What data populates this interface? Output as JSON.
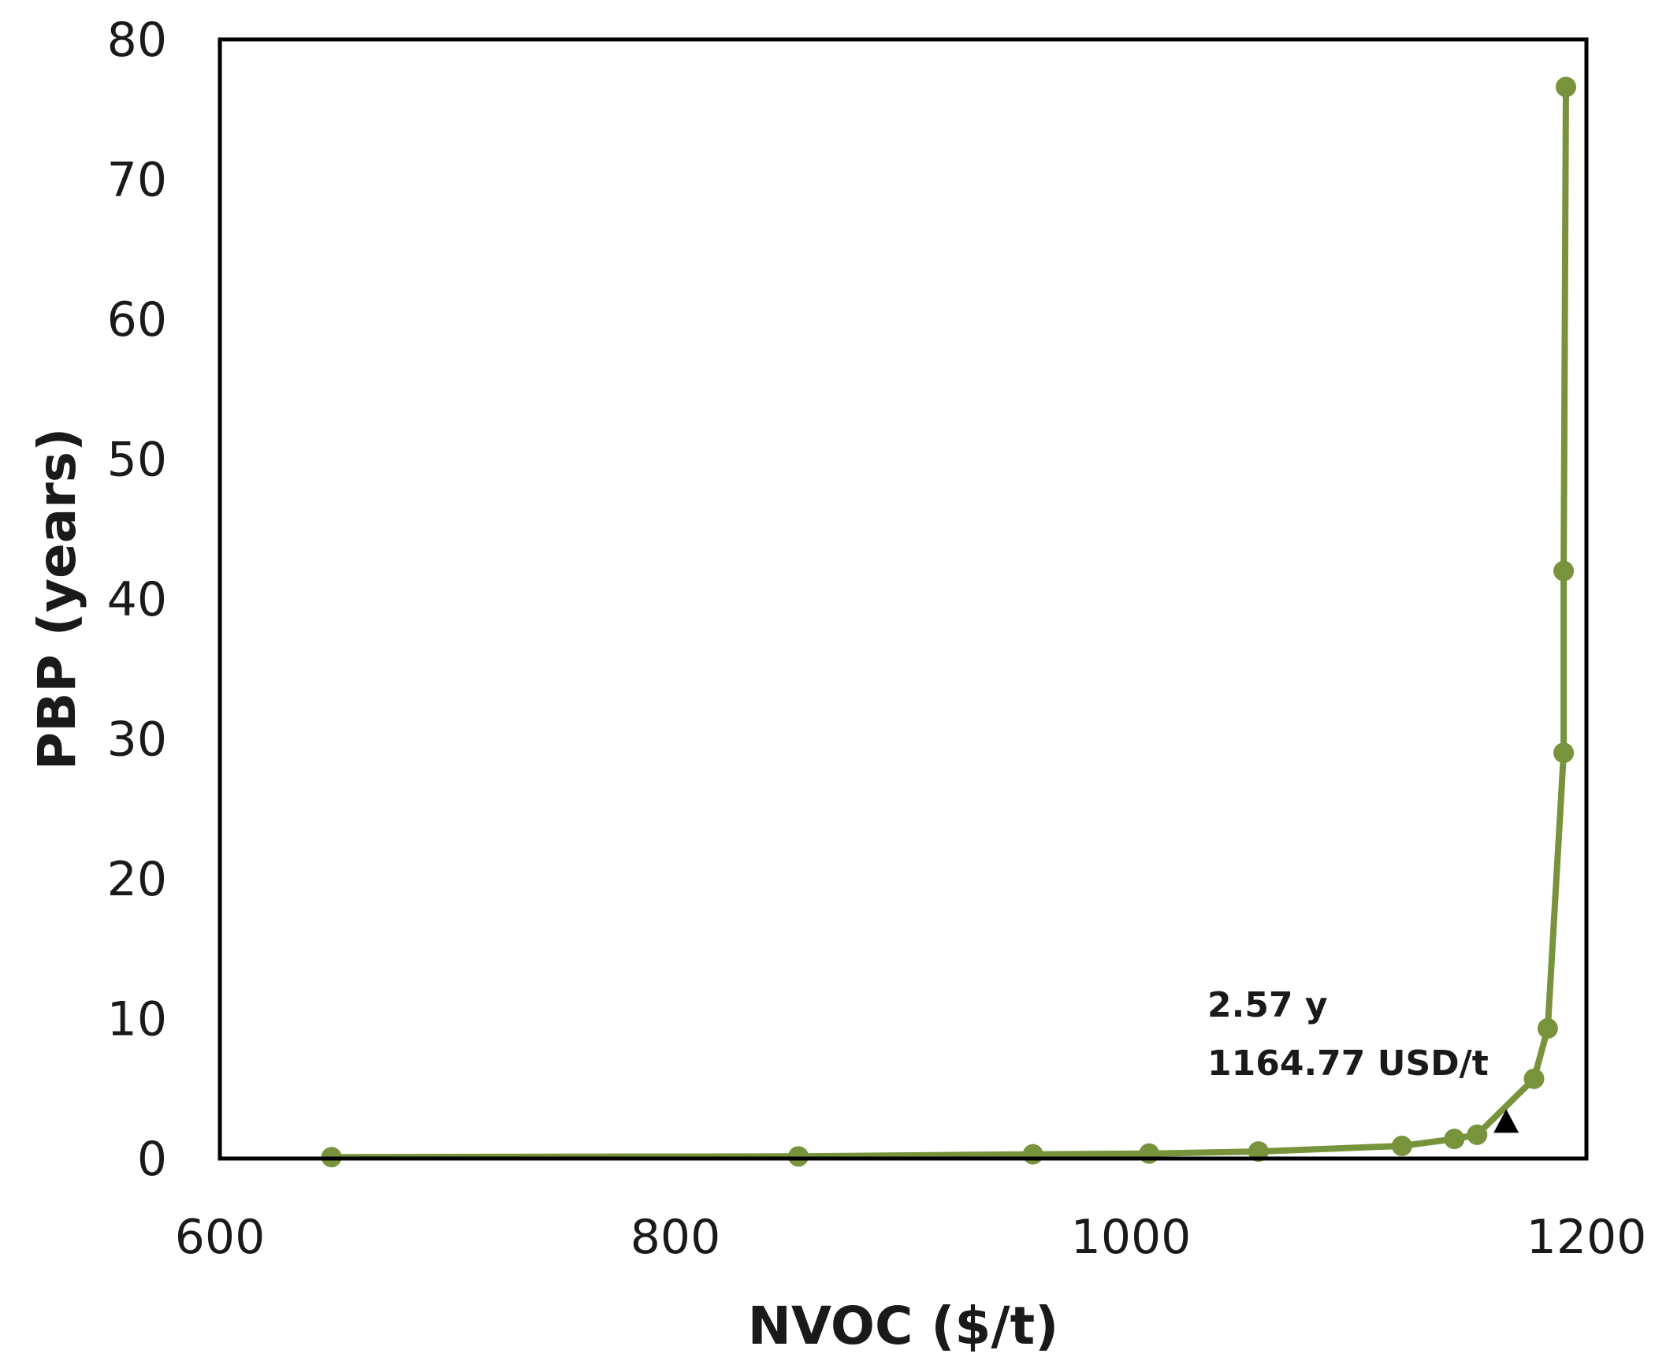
{
  "chart_data": {
    "type": "line",
    "title": "",
    "xlabel": "NVOC ($/t)",
    "ylabel": "PBP (years)",
    "xlim": [
      600,
      1200
    ],
    "ylim": [
      0,
      80
    ],
    "x_ticks": [
      600,
      800,
      1000,
      1200
    ],
    "y_ticks": [
      0,
      10,
      20,
      30,
      40,
      50,
      60,
      70,
      80
    ],
    "grid": false,
    "legend": "none",
    "series": [
      {
        "color": "#77933c",
        "marker": "circle",
        "points": [
          {
            "x": 649,
            "y": 0.1
          },
          {
            "x": 854,
            "y": 0.15
          },
          {
            "x": 957,
            "y": 0.3
          },
          {
            "x": 1008,
            "y": 0.35
          },
          {
            "x": 1056,
            "y": 0.5
          },
          {
            "x": 1119,
            "y": 0.9
          },
          {
            "x": 1142,
            "y": 1.4
          },
          {
            "x": 1152,
            "y": 1.7
          },
          {
            "x": 1177,
            "y": 5.7
          },
          {
            "x": 1183,
            "y": 9.3
          },
          {
            "x": 1190,
            "y": 29.0
          },
          {
            "x": 1190,
            "y": 42.0
          },
          {
            "x": 1191,
            "y": 76.6
          }
        ]
      }
    ],
    "annotation": {
      "x": 1164.77,
      "y": 2.57,
      "marker": "triangle",
      "marker_color": "#000000",
      "line1": "2.57 y",
      "line2": "1164.77  USD/t"
    }
  }
}
